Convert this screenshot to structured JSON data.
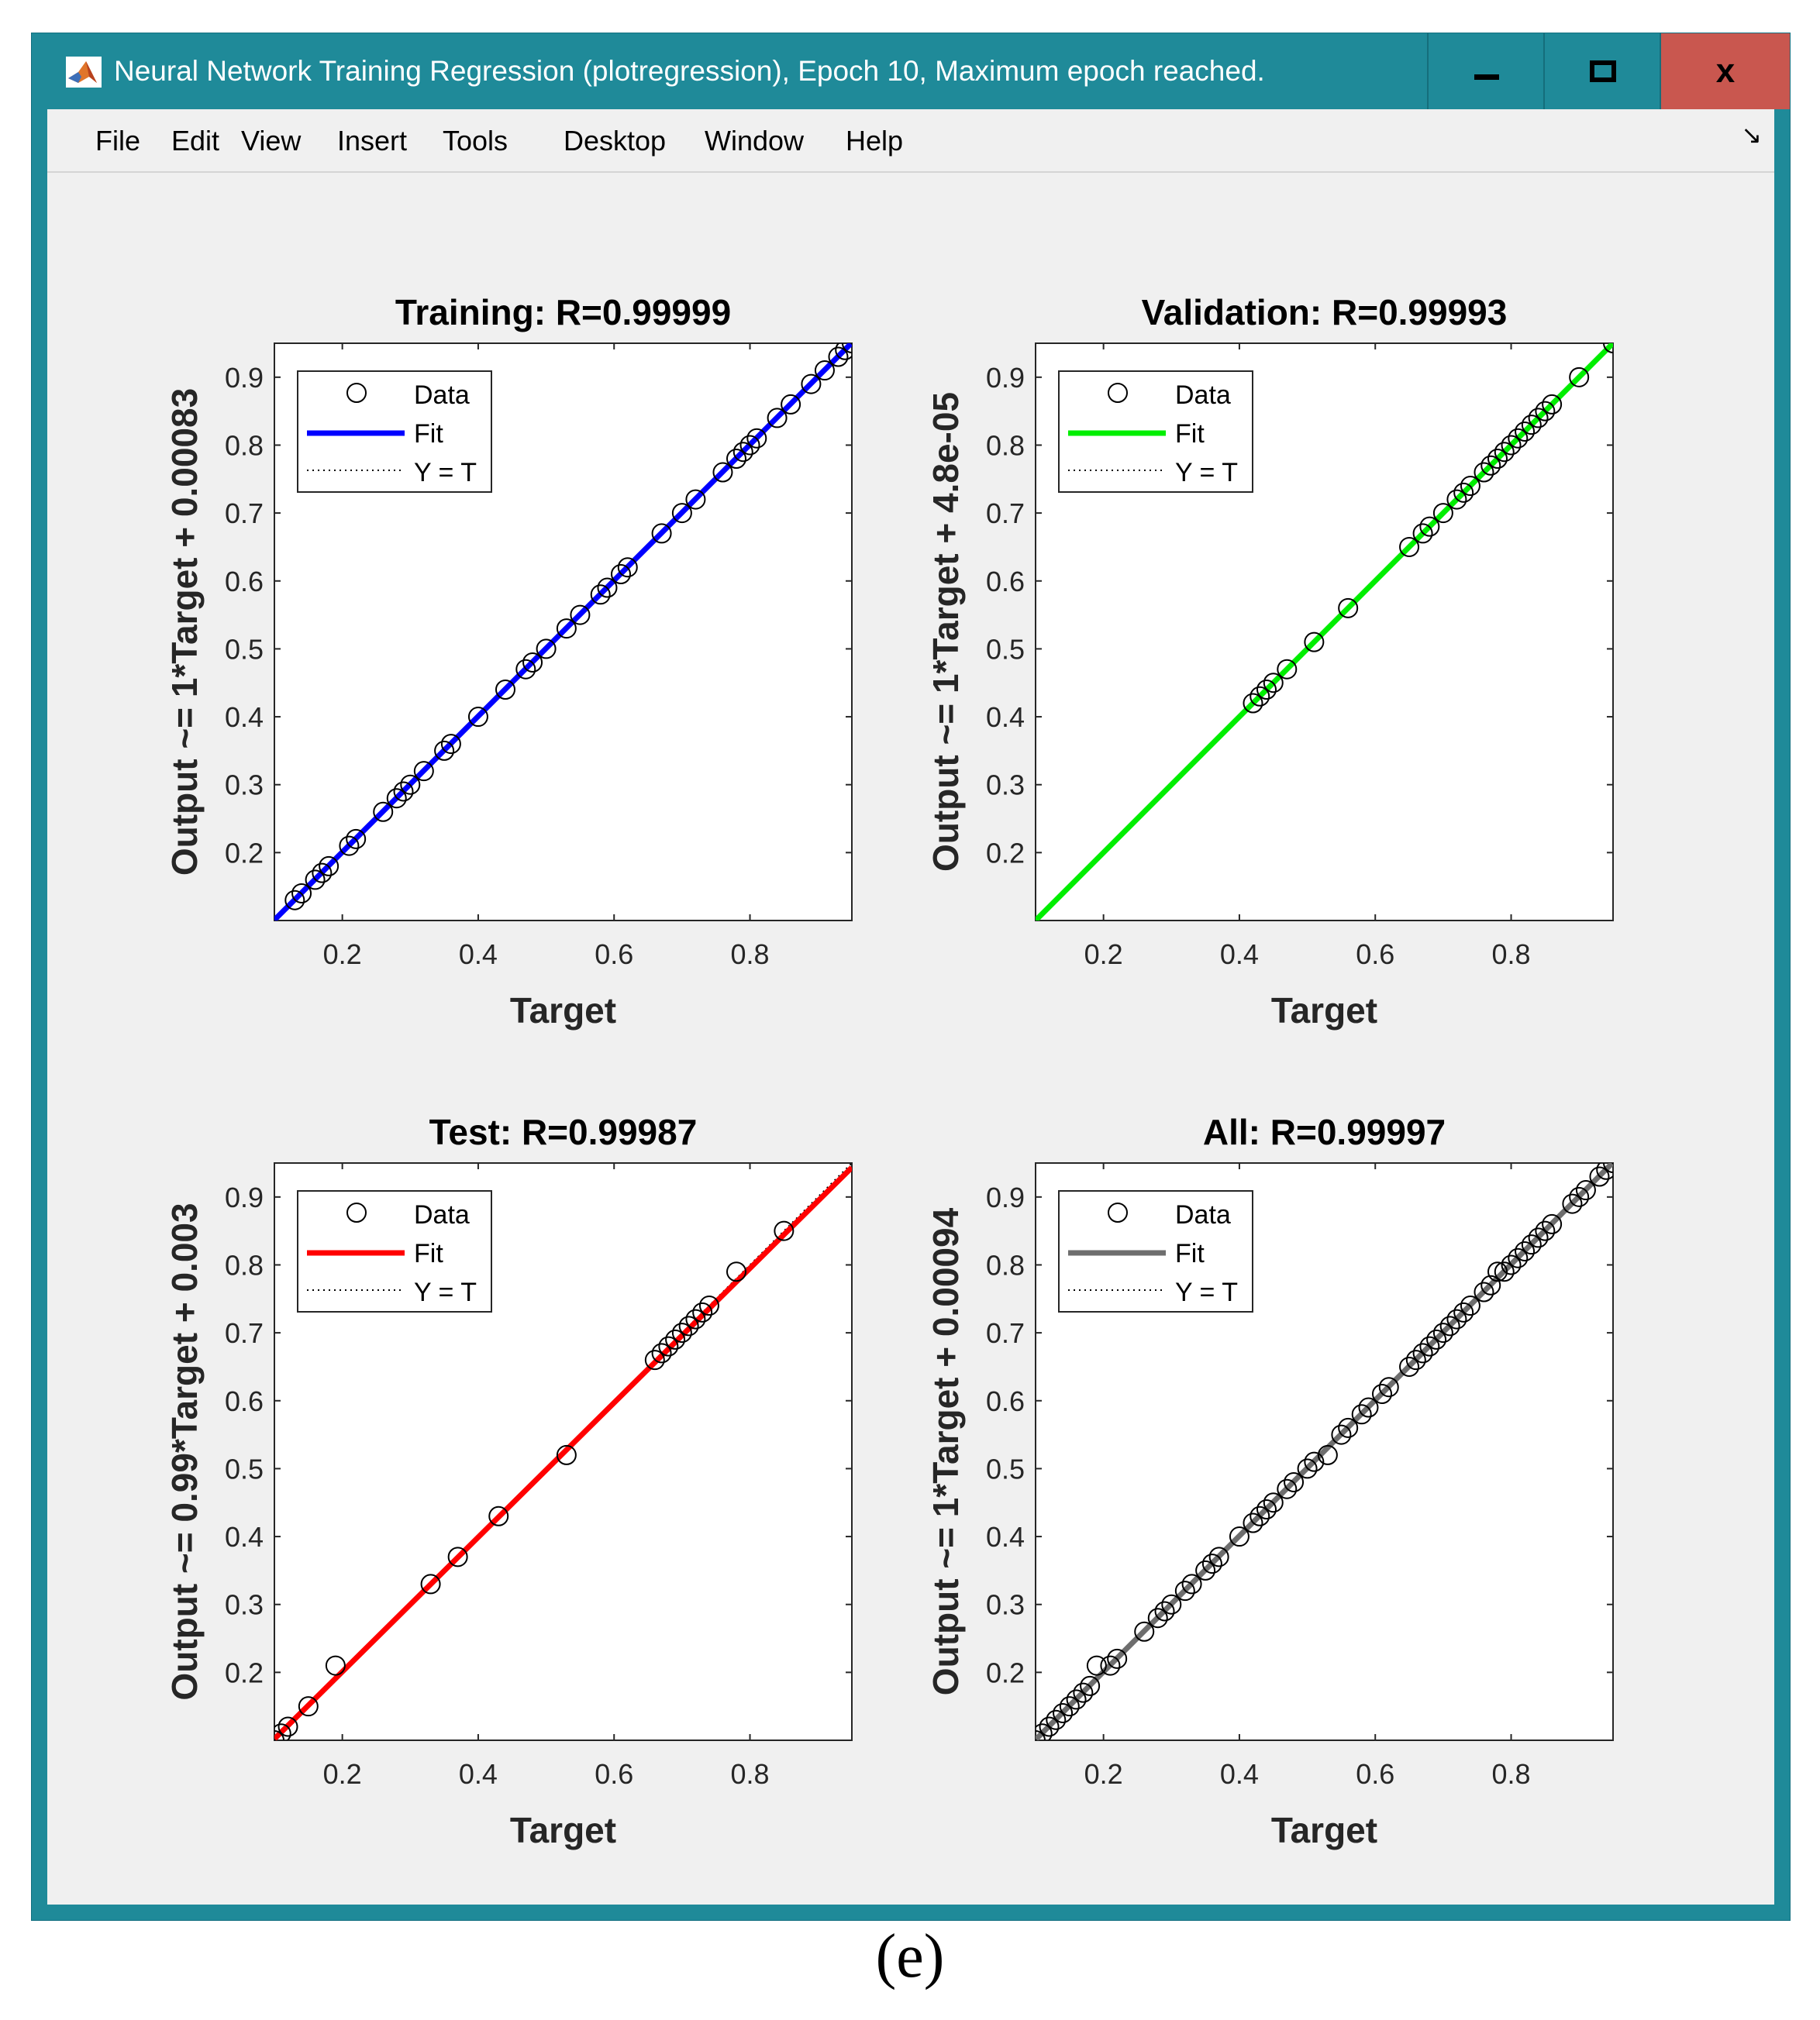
{
  "window": {
    "title": "Neural Network Training Regression (plotregression), Epoch 10, Maximum epoch reached.",
    "close_label": "x"
  },
  "menu": [
    "File",
    "Edit",
    "View",
    "Insert",
    "Tools",
    "Desktop",
    "Window",
    "Help"
  ],
  "dock_glyph": "↘",
  "caption": "(e)",
  "colors": {
    "window_frame": "#1f8a99",
    "close_button": "#c9574f",
    "figure_bg": "#f0f0f0"
  },
  "chart_data": [
    {
      "type": "scatter",
      "title": "Training: R=0.99999",
      "xlabel": "Target",
      "ylabel": "Output ~= 1*Target + 0.00083",
      "xlim": [
        0.1,
        0.95
      ],
      "ylim": [
        0.1,
        0.95
      ],
      "xticks": [
        0.2,
        0.4,
        0.6,
        0.8
      ],
      "yticks": [
        0.2,
        0.3,
        0.4,
        0.5,
        0.6,
        0.7,
        0.8,
        0.9
      ],
      "legend": {
        "placement": "top-left",
        "entries": [
          "Data",
          "Fit",
          "Y = T"
        ]
      },
      "fit": {
        "color": "#0000ff",
        "slope": 1,
        "intercept": 0.00083
      },
      "x": [
        0.13,
        0.14,
        0.16,
        0.17,
        0.18,
        0.21,
        0.22,
        0.26,
        0.28,
        0.29,
        0.3,
        0.32,
        0.35,
        0.36,
        0.4,
        0.44,
        0.47,
        0.48,
        0.5,
        0.53,
        0.55,
        0.58,
        0.59,
        0.61,
        0.62,
        0.67,
        0.7,
        0.72,
        0.76,
        0.78,
        0.79,
        0.8,
        0.81,
        0.84,
        0.86,
        0.89,
        0.91,
        0.93,
        0.94,
        0.95
      ],
      "y": [
        0.13,
        0.14,
        0.16,
        0.17,
        0.18,
        0.21,
        0.22,
        0.26,
        0.28,
        0.29,
        0.3,
        0.32,
        0.35,
        0.36,
        0.4,
        0.44,
        0.47,
        0.48,
        0.5,
        0.53,
        0.55,
        0.58,
        0.59,
        0.61,
        0.62,
        0.67,
        0.7,
        0.72,
        0.76,
        0.78,
        0.79,
        0.8,
        0.81,
        0.84,
        0.86,
        0.89,
        0.91,
        0.93,
        0.94,
        0.95
      ]
    },
    {
      "type": "scatter",
      "title": "Validation: R=0.99993",
      "xlabel": "Target",
      "ylabel": "Output ~= 1*Target + 4.8e-05",
      "xlim": [
        0.1,
        0.95
      ],
      "ylim": [
        0.1,
        0.95
      ],
      "xticks": [
        0.2,
        0.4,
        0.6,
        0.8
      ],
      "yticks": [
        0.2,
        0.3,
        0.4,
        0.5,
        0.6,
        0.7,
        0.8,
        0.9
      ],
      "legend": {
        "placement": "top-left",
        "entries": [
          "Data",
          "Fit",
          "Y = T"
        ]
      },
      "fit": {
        "color": "#00ee00",
        "slope": 1,
        "intercept": 4.8e-05
      },
      "x": [
        0.42,
        0.43,
        0.44,
        0.45,
        0.47,
        0.51,
        0.56,
        0.65,
        0.67,
        0.68,
        0.7,
        0.72,
        0.73,
        0.74,
        0.76,
        0.77,
        0.78,
        0.79,
        0.8,
        0.81,
        0.82,
        0.83,
        0.84,
        0.85,
        0.86,
        0.9,
        0.95
      ],
      "y": [
        0.42,
        0.43,
        0.44,
        0.45,
        0.47,
        0.51,
        0.56,
        0.65,
        0.67,
        0.68,
        0.7,
        0.72,
        0.73,
        0.74,
        0.76,
        0.77,
        0.78,
        0.79,
        0.8,
        0.81,
        0.82,
        0.83,
        0.84,
        0.85,
        0.86,
        0.9,
        0.95
      ]
    },
    {
      "type": "scatter",
      "title": "Test: R=0.99987",
      "xlabel": "Target",
      "ylabel": "Output ~= 0.99*Target + 0.003",
      "xlim": [
        0.1,
        0.95
      ],
      "ylim": [
        0.1,
        0.95
      ],
      "xticks": [
        0.2,
        0.4,
        0.6,
        0.8
      ],
      "yticks": [
        0.2,
        0.3,
        0.4,
        0.5,
        0.6,
        0.7,
        0.8,
        0.9
      ],
      "legend": {
        "placement": "top-left",
        "entries": [
          "Data",
          "Fit",
          "Y = T"
        ]
      },
      "fit": {
        "color": "#ff0000",
        "slope": 0.99,
        "intercept": 0.003
      },
      "x": [
        0.1,
        0.11,
        0.12,
        0.15,
        0.19,
        0.33,
        0.37,
        0.43,
        0.53,
        0.66,
        0.67,
        0.68,
        0.69,
        0.7,
        0.71,
        0.72,
        0.73,
        0.74,
        0.78,
        0.85
      ],
      "y": [
        0.1,
        0.11,
        0.12,
        0.15,
        0.21,
        0.33,
        0.37,
        0.43,
        0.52,
        0.66,
        0.67,
        0.68,
        0.69,
        0.7,
        0.71,
        0.72,
        0.73,
        0.74,
        0.79,
        0.85
      ]
    },
    {
      "type": "scatter",
      "title": "All: R=0.99997",
      "xlabel": "Target",
      "ylabel": "Output ~= 1*Target + 0.00094",
      "xlim": [
        0.1,
        0.95
      ],
      "ylim": [
        0.1,
        0.95
      ],
      "xticks": [
        0.2,
        0.4,
        0.6,
        0.8
      ],
      "yticks": [
        0.2,
        0.3,
        0.4,
        0.5,
        0.6,
        0.7,
        0.8,
        0.9
      ],
      "legend": {
        "placement": "top-left",
        "entries": [
          "Data",
          "Fit",
          "Y = T"
        ]
      },
      "fit": {
        "color": "#6e6e6e",
        "slope": 1,
        "intercept": 0.00094
      },
      "x": [
        0.1,
        0.11,
        0.12,
        0.13,
        0.14,
        0.15,
        0.16,
        0.17,
        0.18,
        0.19,
        0.21,
        0.22,
        0.26,
        0.28,
        0.29,
        0.3,
        0.32,
        0.33,
        0.35,
        0.36,
        0.37,
        0.4,
        0.42,
        0.43,
        0.44,
        0.45,
        0.47,
        0.48,
        0.5,
        0.51,
        0.53,
        0.55,
        0.56,
        0.58,
        0.59,
        0.61,
        0.62,
        0.65,
        0.66,
        0.67,
        0.68,
        0.69,
        0.7,
        0.71,
        0.72,
        0.73,
        0.74,
        0.76,
        0.77,
        0.78,
        0.79,
        0.8,
        0.81,
        0.82,
        0.83,
        0.84,
        0.85,
        0.86,
        0.89,
        0.9,
        0.91,
        0.93,
        0.94,
        0.95
      ],
      "y": [
        0.1,
        0.11,
        0.12,
        0.13,
        0.14,
        0.15,
        0.16,
        0.17,
        0.18,
        0.21,
        0.21,
        0.22,
        0.26,
        0.28,
        0.29,
        0.3,
        0.32,
        0.33,
        0.35,
        0.36,
        0.37,
        0.4,
        0.42,
        0.43,
        0.44,
        0.45,
        0.47,
        0.48,
        0.5,
        0.51,
        0.52,
        0.55,
        0.56,
        0.58,
        0.59,
        0.61,
        0.62,
        0.65,
        0.66,
        0.67,
        0.68,
        0.69,
        0.7,
        0.71,
        0.72,
        0.73,
        0.74,
        0.76,
        0.77,
        0.79,
        0.79,
        0.8,
        0.81,
        0.82,
        0.83,
        0.84,
        0.85,
        0.86,
        0.89,
        0.9,
        0.91,
        0.93,
        0.94,
        0.95
      ]
    }
  ]
}
